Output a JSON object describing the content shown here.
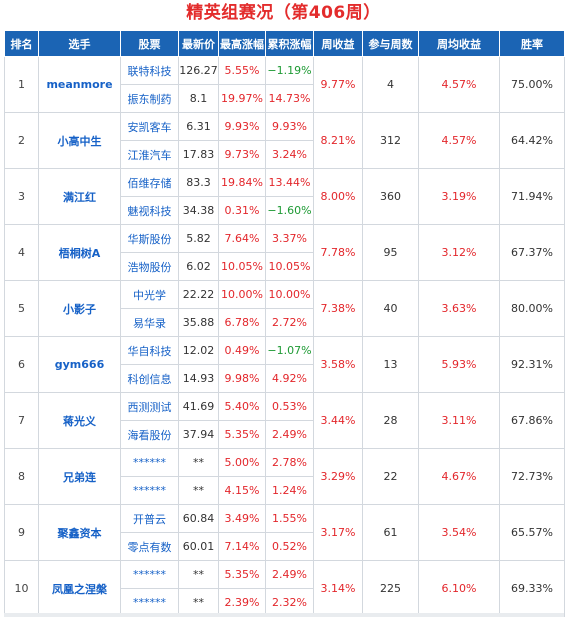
{
  "title": "精英组赛况（第406周）",
  "headers": [
    "排名",
    "选手",
    "股票",
    "最新价",
    "最高涨幅",
    "累积涨幅",
    "周收益",
    "参与周数",
    "周均收益",
    "胜率"
  ],
  "colors": {
    "header_bg": "#1b64b4",
    "title": "#e32c2c",
    "up": "#e3262b",
    "down": "#1e9a34",
    "link": "#1661c7"
  },
  "rows": [
    {
      "rank": "1",
      "player": "meanmore",
      "weekly": "9.77%",
      "weeks": "4",
      "avg": "4.57%",
      "win": "75.00%",
      "stocks": [
        {
          "name": "联特科技",
          "price": "126.27",
          "high": "5.55%",
          "cum": "−1.19%",
          "cum_dir": "down"
        },
        {
          "name": "振东制药",
          "price": "8.1",
          "high": "19.97%",
          "cum": "14.73%",
          "cum_dir": "up"
        }
      ]
    },
    {
      "rank": "2",
      "player": "小高中生",
      "weekly": "8.21%",
      "weeks": "312",
      "avg": "4.57%",
      "win": "64.42%",
      "stocks": [
        {
          "name": "安凯客车",
          "price": "6.31",
          "high": "9.93%",
          "cum": "9.93%",
          "cum_dir": "up"
        },
        {
          "name": "江淮汽车",
          "price": "17.83",
          "high": "9.73%",
          "cum": "3.24%",
          "cum_dir": "up"
        }
      ]
    },
    {
      "rank": "3",
      "player": "满江红",
      "weekly": "8.00%",
      "weeks": "360",
      "avg": "3.19%",
      "win": "71.94%",
      "stocks": [
        {
          "name": "佰维存储",
          "price": "83.3",
          "high": "19.84%",
          "cum": "13.44%",
          "cum_dir": "up"
        },
        {
          "name": "魅视科技",
          "price": "34.38",
          "high": "0.31%",
          "cum": "−1.60%",
          "cum_dir": "down"
        }
      ]
    },
    {
      "rank": "4",
      "player": "梧桐树A",
      "weekly": "7.78%",
      "weeks": "95",
      "avg": "3.12%",
      "win": "67.37%",
      "stocks": [
        {
          "name": "华斯股份",
          "price": "5.82",
          "high": "7.64%",
          "cum": "3.37%",
          "cum_dir": "up"
        },
        {
          "name": "浩物股份",
          "price": "6.02",
          "high": "10.05%",
          "cum": "10.05%",
          "cum_dir": "up"
        }
      ]
    },
    {
      "rank": "5",
      "player": "小影子",
      "weekly": "7.38%",
      "weeks": "40",
      "avg": "3.63%",
      "win": "80.00%",
      "stocks": [
        {
          "name": "中光学",
          "price": "22.22",
          "high": "10.00%",
          "cum": "10.00%",
          "cum_dir": "up"
        },
        {
          "name": "易华录",
          "price": "35.88",
          "high": "6.78%",
          "cum": "2.72%",
          "cum_dir": "up"
        }
      ]
    },
    {
      "rank": "6",
      "player": "gym666",
      "weekly": "3.58%",
      "weeks": "13",
      "avg": "5.93%",
      "win": "92.31%",
      "stocks": [
        {
          "name": "华自科技",
          "price": "12.02",
          "high": "0.49%",
          "cum": "−1.07%",
          "cum_dir": "down"
        },
        {
          "name": "科创信息",
          "price": "14.93",
          "high": "9.98%",
          "cum": "4.92%",
          "cum_dir": "up"
        }
      ]
    },
    {
      "rank": "7",
      "player": "蒋光义",
      "weekly": "3.44%",
      "weeks": "28",
      "avg": "3.11%",
      "win": "67.86%",
      "stocks": [
        {
          "name": "西测测试",
          "price": "41.69",
          "high": "5.40%",
          "cum": "0.53%",
          "cum_dir": "up"
        },
        {
          "name": "海看股份",
          "price": "37.94",
          "high": "5.35%",
          "cum": "2.49%",
          "cum_dir": "up"
        }
      ]
    },
    {
      "rank": "8",
      "player": "兄弟连",
      "weekly": "3.29%",
      "weeks": "22",
      "avg": "4.67%",
      "win": "72.73%",
      "stocks": [
        {
          "name": "******",
          "price": "**",
          "high": "5.00%",
          "cum": "2.78%",
          "cum_dir": "up"
        },
        {
          "name": "******",
          "price": "**",
          "high": "4.15%",
          "cum": "1.24%",
          "cum_dir": "up"
        }
      ]
    },
    {
      "rank": "9",
      "player": "聚鑫资本",
      "weekly": "3.17%",
      "weeks": "61",
      "avg": "3.54%",
      "win": "65.57%",
      "stocks": [
        {
          "name": "开普云",
          "price": "60.84",
          "high": "3.49%",
          "cum": "1.55%",
          "cum_dir": "up"
        },
        {
          "name": "零点有数",
          "price": "60.01",
          "high": "7.14%",
          "cum": "0.52%",
          "cum_dir": "up"
        }
      ]
    },
    {
      "rank": "10",
      "player": "凤凰之涅槃",
      "weekly": "3.14%",
      "weeks": "225",
      "avg": "6.10%",
      "win": "69.33%",
      "stocks": [
        {
          "name": "******",
          "price": "**",
          "high": "5.35%",
          "cum": "2.49%",
          "cum_dir": "up"
        },
        {
          "name": "******",
          "price": "**",
          "high": "2.39%",
          "cum": "2.32%",
          "cum_dir": "up"
        }
      ]
    }
  ]
}
